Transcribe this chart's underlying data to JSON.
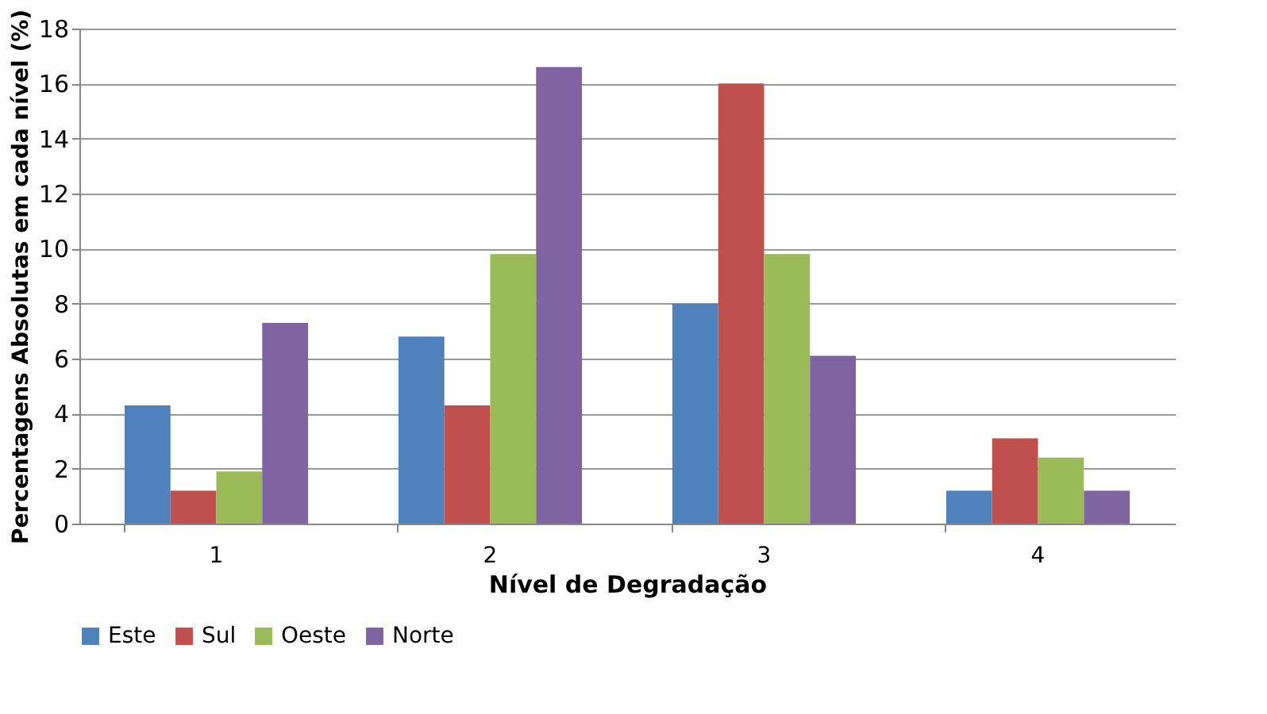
{
  "chart_data": {
    "type": "bar",
    "xlabel": "Nível de Degradação",
    "ylabel": "Percentagens Absolutas em cada nível (%)",
    "categories": [
      "1",
      "2",
      "3",
      "4"
    ],
    "series": [
      {
        "name": "Este",
        "color": "#4f81bd",
        "values": [
          4.3,
          6.8,
          8.0,
          1.2
        ]
      },
      {
        "name": "Sul",
        "color": "#c0504d",
        "values": [
          1.2,
          4.3,
          16.0,
          3.1
        ]
      },
      {
        "name": "Oeste",
        "color": "#9bbb59",
        "values": [
          1.9,
          9.8,
          9.8,
          2.4
        ]
      },
      {
        "name": "Norte",
        "color": "#8064a2",
        "values": [
          7.3,
          16.6,
          6.1,
          1.2
        ]
      }
    ],
    "ylim": [
      0,
      18
    ],
    "yticks": [
      0,
      2,
      4,
      6,
      8,
      10,
      12,
      14,
      16,
      18
    ],
    "grid": "y",
    "legend": "bottom"
  }
}
